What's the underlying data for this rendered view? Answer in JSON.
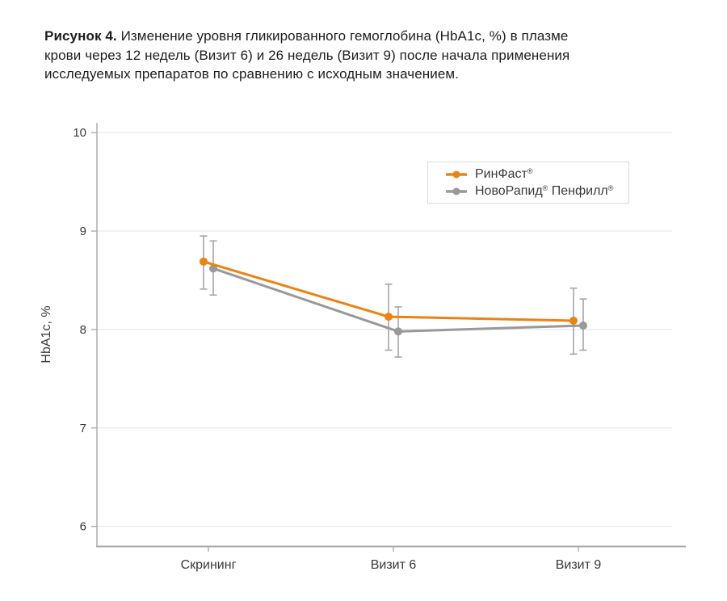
{
  "caption": {
    "prefix": "Рисунок 4.",
    "line1": "Изменение уровня гликированного гемоглобина (HbA1c, %) в плазме",
    "line2": "крови через 12 недель (Визит 6) и 26 недель (Визит 9) после начала применения",
    "line3": "исследуемых препаратов по сравнению с исходным значением."
  },
  "chart_data": {
    "type": "line",
    "title": "",
    "ylabel": "HbA1c, %",
    "xlabel": "",
    "categories": [
      "Скрининг",
      "Визит 6",
      "Визит 9"
    ],
    "y_ticks": [
      10,
      9,
      8,
      7,
      6
    ],
    "ylim": [
      5.8,
      10.1
    ],
    "grid": true,
    "error_bars": true,
    "legend_position": "top-right-inside",
    "series": [
      {
        "name": "РинФаст®",
        "color": "#EE8211",
        "values": [
          8.69,
          8.13,
          8.09
        ],
        "error_low": [
          8.41,
          7.79,
          7.75
        ],
        "error_high": [
          8.95,
          8.46,
          8.42
        ]
      },
      {
        "name": "НовоРапид® Пенфилл®",
        "color": "#999999",
        "values": [
          8.62,
          7.98,
          8.04
        ],
        "error_low": [
          8.35,
          7.72,
          7.79
        ],
        "error_high": [
          8.9,
          8.23,
          8.31
        ]
      }
    ],
    "colors": {
      "error_bar": "#A6A6A6",
      "grid": "#E4E4E4",
      "axis": "#A8A8A8",
      "tick_text": "#3A3A3A"
    }
  }
}
